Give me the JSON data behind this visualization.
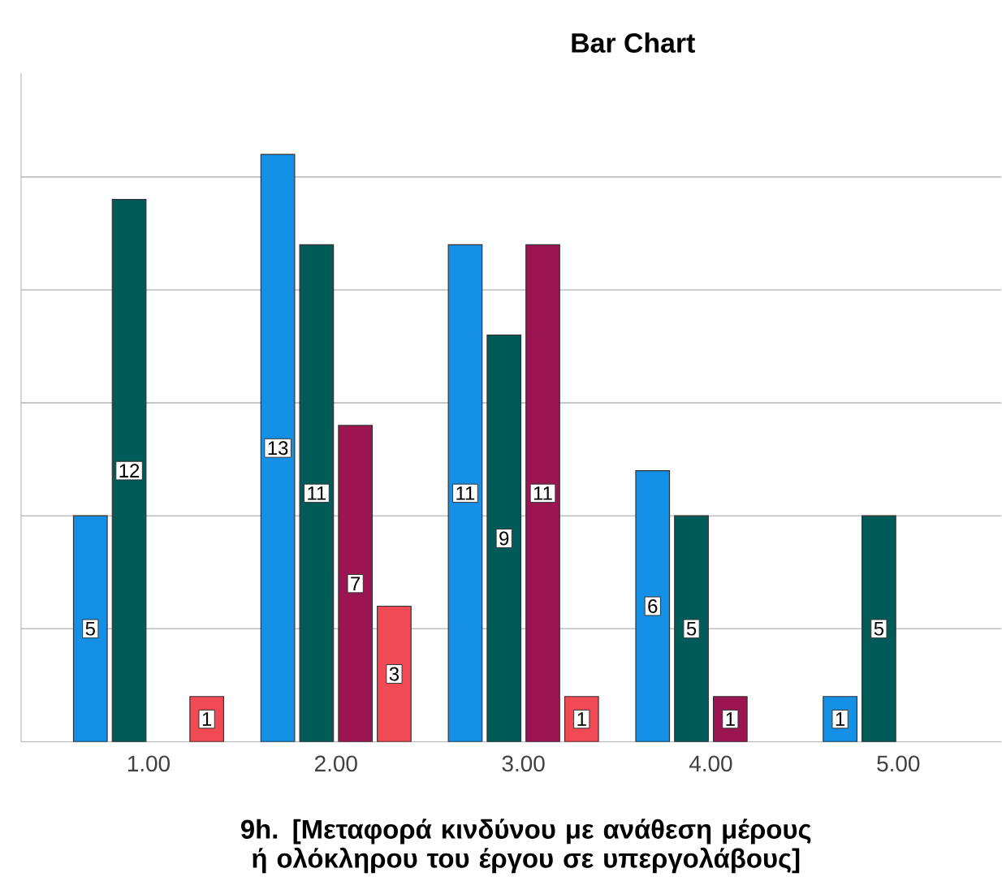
{
  "chart_data": {
    "type": "bar",
    "title": "Bar Chart",
    "xlabel": "9h. [Μεταφορά κινδύνου με ανάθεση μέρους ή ολόκληρου του έργου σε υπεργολάβους]",
    "categories": [
      "1.00",
      "2.00",
      "3.00",
      "4.00",
      "5.00"
    ],
    "series": [
      {
        "color": "#1490e6",
        "values": [
          5,
          13,
          11,
          6,
          1
        ],
        "value_labels": [
          "5",
          "13",
          "11",
          "6",
          "1"
        ]
      },
      {
        "color": "#005a58",
        "values": [
          12,
          11,
          9,
          5,
          5
        ],
        "value_labels": [
          "12",
          "11",
          "9",
          "5",
          "5"
        ]
      },
      {
        "color": "#9b1650",
        "values": [
          null,
          7,
          11,
          1,
          null
        ],
        "value_labels": [
          null,
          "7",
          "11",
          "1",
          null
        ]
      },
      {
        "color": "#f24a55",
        "values": [
          1,
          3,
          1,
          null,
          null
        ],
        "value_labels": [
          "1",
          "3",
          "1",
          null,
          null
        ]
      }
    ],
    "ylim": [
      0,
      14.8
    ],
    "yticks": [
      {
        "value": 2.5,
        "label": null
      },
      {
        "value": 5,
        "label": null
      },
      {
        "value": 7.5,
        "label": null
      },
      {
        "value": 10,
        "label": null
      },
      {
        "value": 12.5,
        "label": null
      }
    ],
    "grid": "y",
    "tick_labels": "x"
  }
}
